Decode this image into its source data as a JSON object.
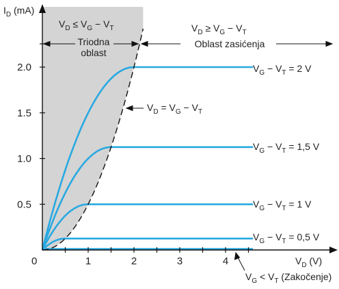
{
  "chart_data": {
    "type": "line",
    "xlabel": {
      "main": "V",
      "sub": "D",
      "unit": " (V)"
    },
    "ylabel": {
      "main": "I",
      "sub": "D",
      "unit": " (mA)"
    },
    "xlim": [
      0,
      5
    ],
    "ylim": [
      0,
      2.5
    ],
    "x_ticks": [
      {
        "v": 0,
        "label": "0"
      },
      {
        "v": 1,
        "label": "1"
      },
      {
        "v": 2,
        "label": "2"
      },
      {
        "v": 3,
        "label": "3"
      },
      {
        "v": 4,
        "label": "4"
      }
    ],
    "y_ticks": [
      {
        "v": 0.5,
        "label": "0.5"
      },
      {
        "v": 1.0,
        "label": "1.0"
      },
      {
        "v": 1.5,
        "label": "1.5"
      },
      {
        "v": 2.0,
        "label": "2.0"
      }
    ],
    "boundary": {
      "label_main": "V",
      "label_sub": "D",
      "label_rest": " =  V",
      "label_sub2": "G",
      "label_rest2": " − V",
      "label_sub3": "T"
    },
    "series": [
      {
        "label_main": "V",
        "label_sub": "G",
        "label_mid": " − V",
        "label_sub2": "T",
        "label_end": " = 2 V",
        "vov": 2.0,
        "isat": 2.0
      },
      {
        "label_main": "V",
        "label_sub": "G",
        "label_mid": " − V",
        "label_sub2": "T",
        "label_end": " = 1,5 V",
        "vov": 1.5,
        "isat": 1.125
      },
      {
        "label_main": "V",
        "label_sub": "G",
        "label_mid": " − V",
        "label_sub2": "T",
        "label_end": " = 1 V",
        "vov": 1.0,
        "isat": 0.5
      },
      {
        "label_main": "V",
        "label_sub": "G",
        "label_mid": " − V",
        "label_sub2": "T",
        "label_end": " = 0,5 V",
        "vov": 0.5,
        "isat": 0.125
      }
    ],
    "cutoff": {
      "v1": "V",
      "s1": "G",
      "mid": " < V",
      "s2": "T",
      "end": " (Zakočenje)"
    },
    "regions": {
      "triode_top": {
        "v1": "V",
        "s1": "D",
        "mid": " ≤  V",
        "s2": "G",
        "end": " − V",
        "s3": "T"
      },
      "triode_name": [
        "Triodna",
        "oblast"
      ],
      "sat_top": {
        "v1": "V",
        "s1": "D",
        "mid": " ≥  V",
        "s2": "G",
        "end": " − V",
        "s3": "T"
      },
      "sat_name": "Oblast zasićenja"
    },
    "colors": {
      "curve": "#29a9e1",
      "shade": "#d4d4d4",
      "axis": "#111111"
    }
  }
}
